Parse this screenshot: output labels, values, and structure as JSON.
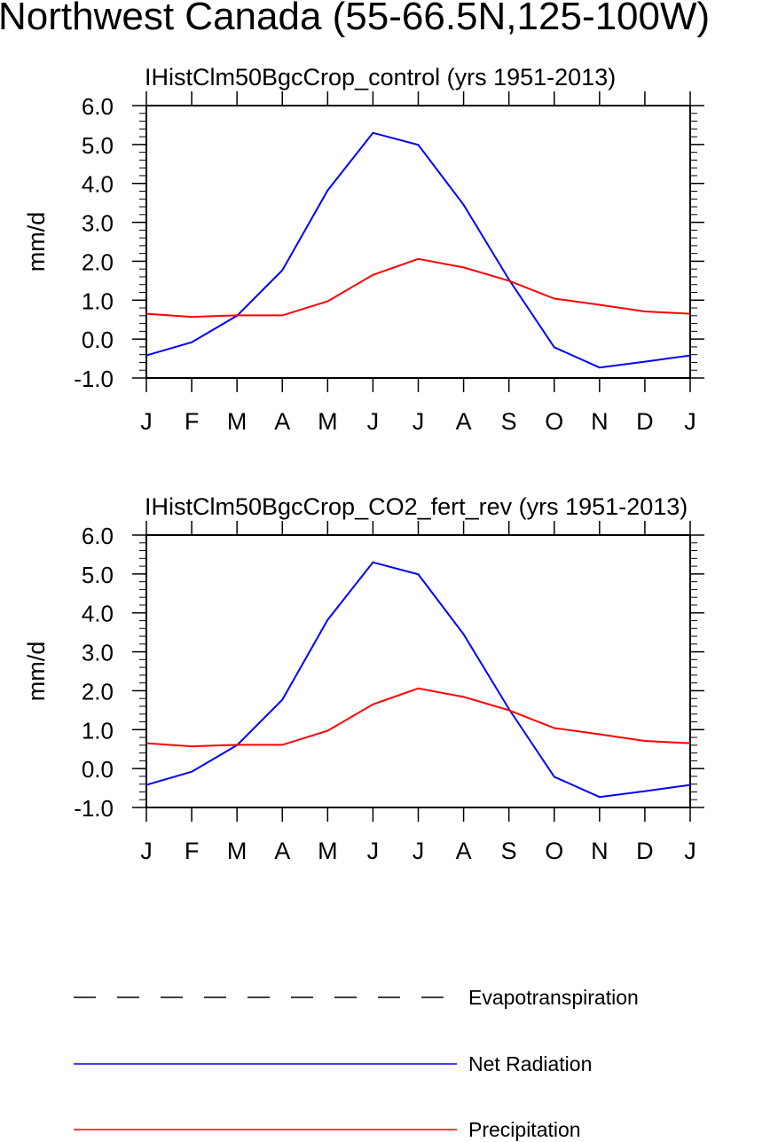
{
  "title": "Northwest Canada (55-66.5N,125-100W)",
  "colors": {
    "net_radiation": "#0000ff",
    "precipitation": "#ff0000",
    "evapotranspiration": "#000000"
  },
  "legend": [
    {
      "name": "Evapotranspiration",
      "color": "#000000",
      "style": "dashed"
    },
    {
      "name": "Net Radiation",
      "color": "#0000ff",
      "style": "solid"
    },
    {
      "name": "Precipitation",
      "color": "#ff0000",
      "style": "solid"
    }
  ],
  "chart_data": [
    {
      "type": "line",
      "title": "IHistClm50BgcCrop_control (yrs 1951-2013)",
      "xlabel": "",
      "ylabel": "mm/d",
      "ylim": [
        -1.0,
        6.0
      ],
      "yticks": [
        "6.0",
        "5.0",
        "4.0",
        "3.0",
        "2.0",
        "1.0",
        "0.0",
        "-1.0"
      ],
      "categories": [
        "J",
        "F",
        "M",
        "A",
        "M",
        "J",
        "J",
        "A",
        "S",
        "O",
        "N",
        "D",
        "J"
      ],
      "series": [
        {
          "name": "Net Radiation",
          "color": "#0000ff",
          "values": [
            -0.42,
            -0.08,
            0.6,
            1.77,
            3.82,
            5.3,
            4.99,
            3.45,
            1.53,
            -0.21,
            -0.73,
            -0.58,
            -0.42
          ]
        },
        {
          "name": "Precipitation",
          "color": "#ff0000",
          "values": [
            0.65,
            0.57,
            0.61,
            0.61,
            0.97,
            1.65,
            2.06,
            1.84,
            1.5,
            1.04,
            0.88,
            0.71,
            0.65
          ]
        }
      ]
    },
    {
      "type": "line",
      "title": "IHistClm50BgcCrop_CO2_fert_rev (yrs 1951-2013)",
      "xlabel": "",
      "ylabel": "mm/d",
      "ylim": [
        -1.0,
        6.0
      ],
      "yticks": [
        "6.0",
        "5.0",
        "4.0",
        "3.0",
        "2.0",
        "1.0",
        "0.0",
        "-1.0"
      ],
      "categories": [
        "J",
        "F",
        "M",
        "A",
        "M",
        "J",
        "J",
        "A",
        "S",
        "O",
        "N",
        "D",
        "J"
      ],
      "series": [
        {
          "name": "Net Radiation",
          "color": "#0000ff",
          "values": [
            -0.42,
            -0.08,
            0.6,
            1.77,
            3.82,
            5.3,
            4.99,
            3.45,
            1.53,
            -0.21,
            -0.73,
            -0.58,
            -0.42
          ]
        },
        {
          "name": "Precipitation",
          "color": "#ff0000",
          "values": [
            0.65,
            0.57,
            0.61,
            0.61,
            0.97,
            1.65,
            2.06,
            1.84,
            1.5,
            1.04,
            0.88,
            0.71,
            0.65
          ]
        }
      ]
    }
  ]
}
